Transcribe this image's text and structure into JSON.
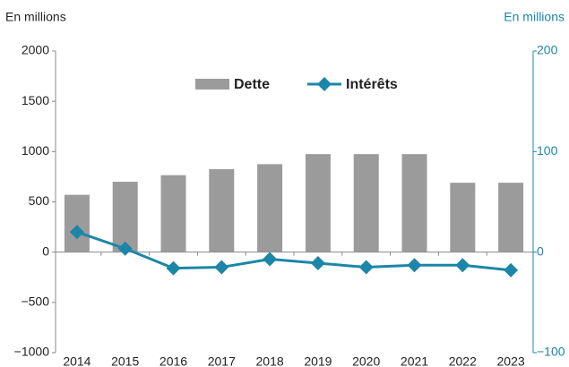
{
  "chart_data": {
    "type": "bar_line",
    "y_label": "En millions",
    "y2_label": "En millions",
    "categories": [
      "2014",
      "2015",
      "2016",
      "2017",
      "2018",
      "2019",
      "2020",
      "2021",
      "2022",
      "2023"
    ],
    "series": [
      {
        "name": "Dette",
        "type": "bar",
        "color": "#9b9b9b",
        "values": [
          570,
          700,
          765,
          825,
          875,
          975,
          975,
          975,
          690,
          690
        ]
      },
      {
        "name": "Intérêts",
        "type": "line",
        "axis": "y2",
        "color": "#1c86a8",
        "values": [
          20,
          3.5,
          -16,
          -15,
          -7,
          -11,
          -15,
          -13,
          -13,
          -18
        ]
      }
    ],
    "ylim": [
      -1000,
      2000
    ],
    "yticks": [
      {
        "value": -1000,
        "label": "−1000"
      },
      {
        "value": -500,
        "label": "−500"
      },
      0,
      500,
      1000,
      1500,
      2000
    ],
    "y2lim": [
      -100,
      200
    ],
    "y2ticks": [
      {
        "value": -100,
        "label": "−100"
      },
      0,
      100,
      200
    ],
    "y2_color": "#1c86a8",
    "grid": false,
    "legend": "top"
  }
}
